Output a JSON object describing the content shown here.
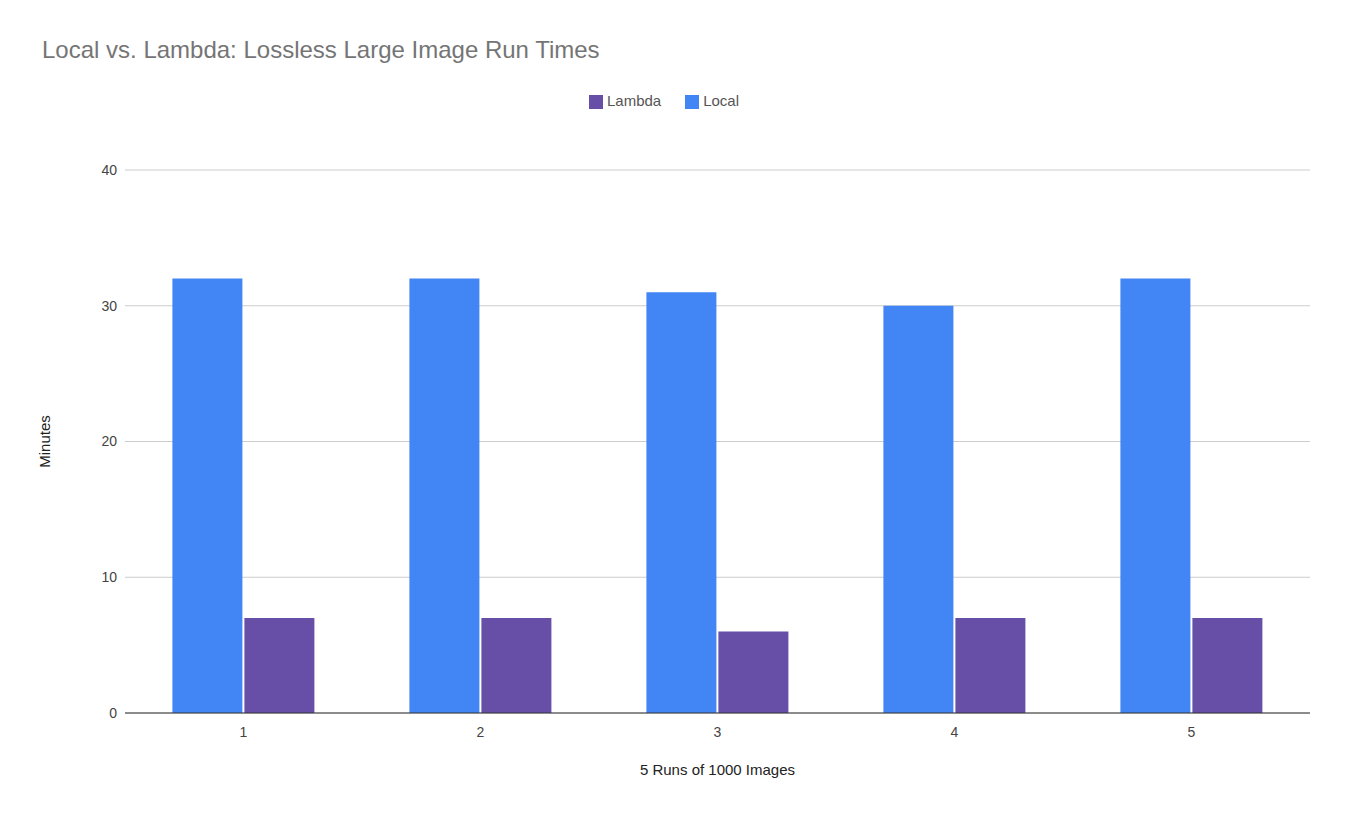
{
  "chart_data": {
    "type": "bar",
    "title": "Local vs. Lambda: Lossless Large Image Run Times",
    "x_label": "5 Runs of 1000 Images",
    "y_label": "Minutes",
    "categories": [
      "1",
      "2",
      "3",
      "4",
      "5"
    ],
    "series": [
      {
        "name": "Local",
        "color": "#4285f4",
        "values": [
          32,
          32,
          31,
          30,
          32
        ]
      },
      {
        "name": "Lambda",
        "color": "#674ea7",
        "values": [
          7,
          7,
          6,
          7,
          7
        ]
      }
    ],
    "ylim": [
      0,
      40
    ],
    "yticks": [
      0,
      10,
      20,
      30,
      40
    ],
    "grid": true,
    "legend": "top"
  }
}
